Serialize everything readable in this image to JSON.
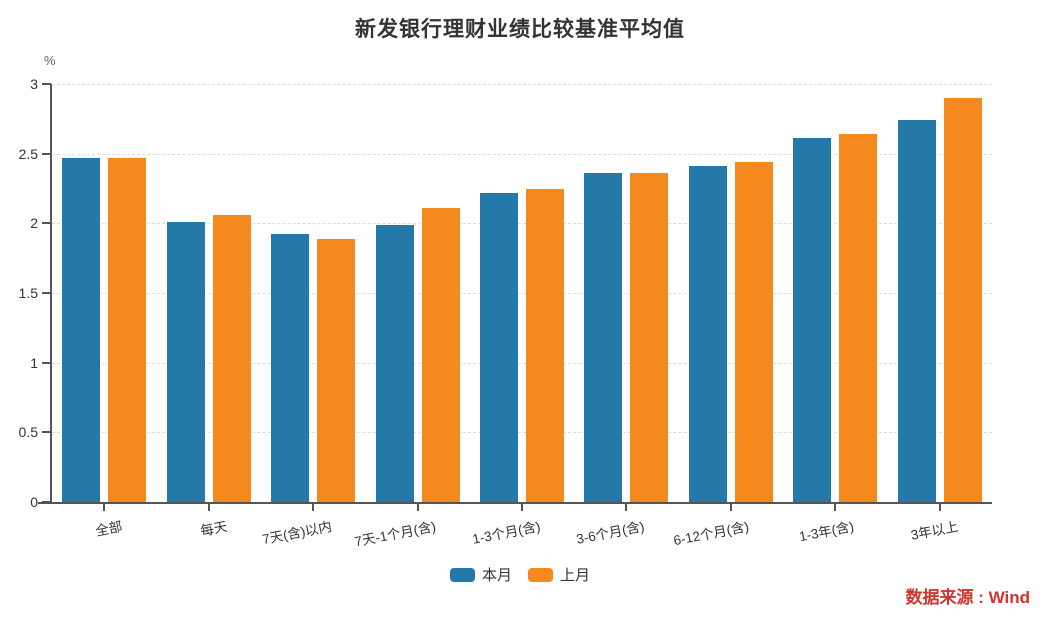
{
  "title": "新发银行理财业绩比较基准平均值",
  "unit_label": "%",
  "source_note": "数据来源 : Wind",
  "colors": {
    "this_month": "#2479A8",
    "last_month": "#F6891E",
    "source_red": "#D0342C",
    "axis": "#555555",
    "grid": "#DCDCDC",
    "text": "#333333"
  },
  "legend": [
    {
      "label": "本月",
      "color": "#2479A8"
    },
    {
      "label": "上月",
      "color": "#F6891E"
    }
  ],
  "chart_data": {
    "type": "bar",
    "title": "新发银行理财业绩比较基准平均值",
    "ylabel": "%",
    "xlabel": "",
    "ylim": [
      0,
      3
    ],
    "ytick_step": 0.5,
    "grid": true,
    "legend_position": "bottom",
    "categories": [
      "全部",
      "每天",
      "7天(含)以内",
      "7天-1个月(含)",
      "1-3个月(含)",
      "3-6个月(含)",
      "6-12个月(含)",
      "1-3年(含)",
      "3年以上"
    ],
    "series": [
      {
        "name": "本月",
        "color": "#2479A8",
        "values": [
          2.47,
          2.01,
          1.92,
          1.99,
          2.22,
          2.36,
          2.41,
          2.61,
          2.74
        ]
      },
      {
        "name": "上月",
        "color": "#F6891E",
        "values": [
          2.47,
          2.06,
          1.89,
          2.11,
          2.25,
          2.36,
          2.44,
          2.64,
          2.9
        ]
      }
    ]
  }
}
